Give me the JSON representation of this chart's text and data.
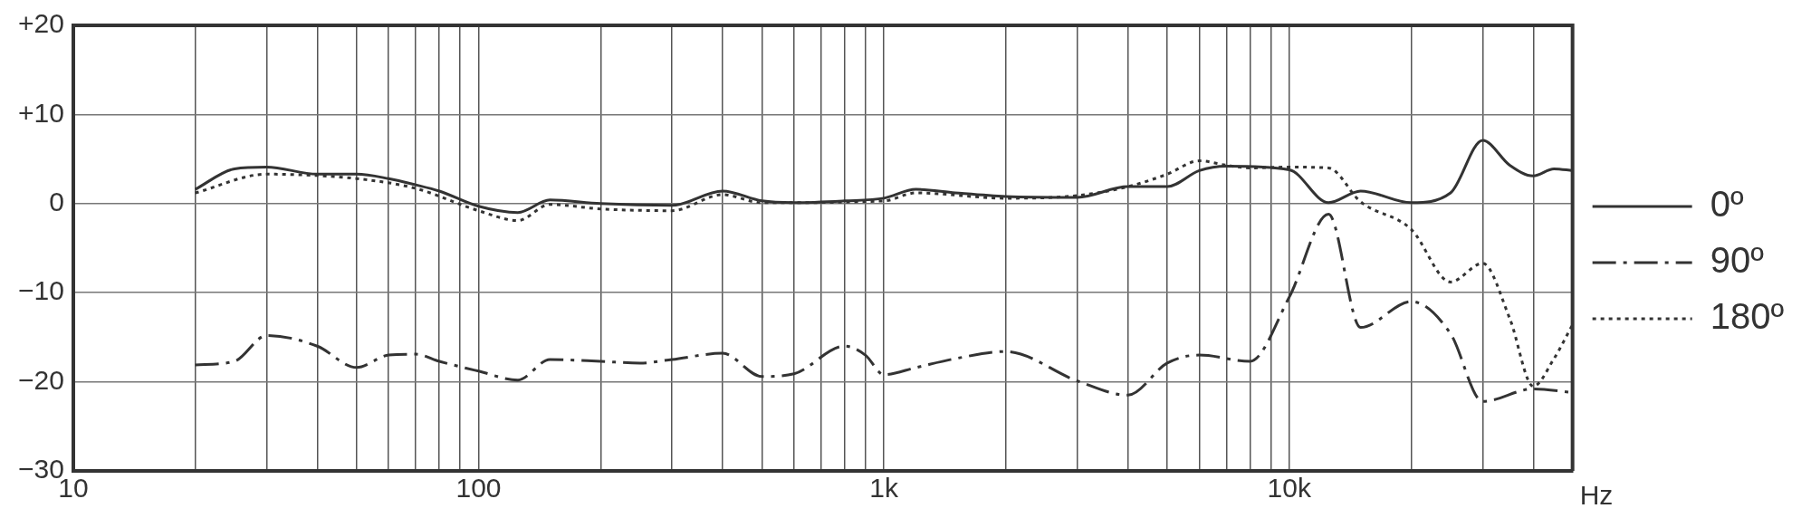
{
  "chart_data": {
    "type": "line",
    "xlabel": "Hz",
    "log": "x",
    "grid": true,
    "legend": "right",
    "marker": "none",
    "xlim": [
      10,
      50000
    ],
    "xticks": [
      {
        "value": 10,
        "label": "10"
      },
      {
        "value": 20,
        "label": null
      },
      {
        "value": 30,
        "label": null
      },
      {
        "value": 40,
        "label": null
      },
      {
        "value": 50,
        "label": null
      },
      {
        "value": 60,
        "label": null
      },
      {
        "value": 70,
        "label": null
      },
      {
        "value": 80,
        "label": null
      },
      {
        "value": 90,
        "label": null
      },
      {
        "value": 100,
        "label": "100"
      },
      {
        "value": 200,
        "label": null
      },
      {
        "value": 300,
        "label": null
      },
      {
        "value": 400,
        "label": null
      },
      {
        "value": 500,
        "label": null
      },
      {
        "value": 600,
        "label": null
      },
      {
        "value": 700,
        "label": null
      },
      {
        "value": 800,
        "label": null
      },
      {
        "value": 900,
        "label": null
      },
      {
        "value": 1000,
        "label": "1k"
      },
      {
        "value": 2000,
        "label": null
      },
      {
        "value": 3000,
        "label": null
      },
      {
        "value": 4000,
        "label": null
      },
      {
        "value": 5000,
        "label": null
      },
      {
        "value": 6000,
        "label": null
      },
      {
        "value": 7000,
        "label": null
      },
      {
        "value": 8000,
        "label": null
      },
      {
        "value": 9000,
        "label": null
      },
      {
        "value": 10000,
        "label": "10k"
      },
      {
        "value": 20000,
        "label": null
      },
      {
        "value": 30000,
        "label": null
      },
      {
        "value": 40000,
        "label": null
      }
    ],
    "ylim": [
      -30,
      20
    ],
    "yticks": [
      {
        "value": 20,
        "label": "+20"
      },
      {
        "value": 10,
        "label": "+10"
      },
      0,
      {
        "value": -10,
        "label": "−10"
      },
      {
        "value": -20,
        "label": "−20"
      },
      {
        "value": -30,
        "label": "−30"
      }
    ],
    "series": [
      {
        "name": "0º",
        "color": "#333333",
        "line_style": "solid",
        "x": [
          20,
          25,
          30,
          40,
          50,
          60,
          70,
          80,
          100,
          125,
          150,
          200,
          300,
          400,
          500,
          600,
          800,
          1000,
          1200,
          1500,
          2000,
          3000,
          4000,
          5000,
          6000,
          7000,
          10000,
          12500,
          15000,
          20000,
          25000,
          30000,
          35000,
          40000,
          45000,
          50000
        ],
        "values": [
          1.6,
          3.9,
          4.1,
          3.3,
          3.3,
          2.8,
          2.1,
          1.4,
          -0.3,
          -1.0,
          0.4,
          0,
          -0.2,
          1.4,
          0.3,
          0.1,
          0.3,
          0.6,
          1.6,
          1.2,
          0.8,
          0.7,
          1.9,
          1.9,
          3.7,
          4.2,
          3.8,
          0.1,
          1.4,
          0.1,
          1.2,
          7.1,
          4.3,
          3.1,
          3.9,
          3.7
        ]
      },
      {
        "name": "90º",
        "color": "#333333",
        "line_style": "dashed",
        "x": [
          20,
          25,
          30,
          40,
          50,
          60,
          70,
          80,
          100,
          125,
          150,
          200,
          250,
          300,
          400,
          500,
          600,
          800,
          900,
          1000,
          1200,
          1500,
          2000,
          3000,
          4000,
          5000,
          6000,
          8000,
          10000,
          12500,
          15000,
          20000,
          25000,
          30000,
          40000,
          50000
        ],
        "values": [
          -18.1,
          -17.7,
          -14.8,
          -16.0,
          -18.4,
          -17.0,
          -16.9,
          -17.7,
          -18.8,
          -19.8,
          -17.5,
          -17.7,
          -17.9,
          -17.5,
          -16.8,
          -19.4,
          -19.1,
          -16.0,
          -17.0,
          -19.2,
          -18.4,
          -17.4,
          -16.6,
          -19.9,
          -21.5,
          -17.9,
          -17.0,
          -17.7,
          -10.5,
          -1.2,
          -13.9,
          -11.0,
          -14.6,
          -22.2,
          -20.8,
          -21.2
        ]
      },
      {
        "name": "180º",
        "color": "#333333",
        "line_style": "dotted",
        "x": [
          20,
          30,
          50,
          70,
          100,
          125,
          150,
          200,
          300,
          400,
          500,
          1000,
          1200,
          2000,
          3000,
          4000,
          5000,
          6000,
          7000,
          8000,
          10000,
          12500,
          15000,
          20000,
          25000,
          30000,
          35000,
          40000,
          45000,
          50000
        ],
        "values": [
          1.2,
          3.3,
          2.8,
          1.7,
          -0.8,
          -1.9,
          -0.1,
          -0.6,
          -0.8,
          1.0,
          0.1,
          0.3,
          1.2,
          0.6,
          0.9,
          1.9,
          3.3,
          4.8,
          4.3,
          4.0,
          4.1,
          4.0,
          0.2,
          -2.9,
          -8.8,
          -6.7,
          -12.9,
          -20.5,
          -17.4,
          -13.6
        ]
      }
    ]
  }
}
